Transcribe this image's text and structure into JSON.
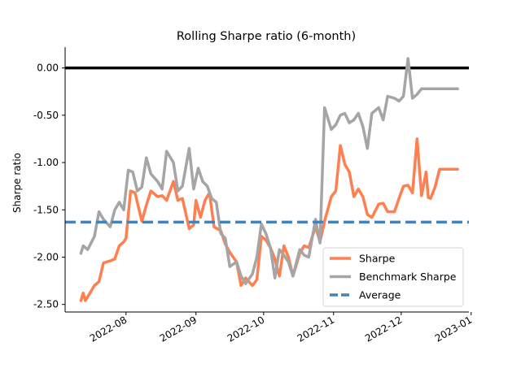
{
  "chart_data": {
    "type": "line",
    "title": "Rolling Sharpe ratio (6-month)",
    "xlabel": "",
    "ylabel": "Sharpe ratio",
    "ylim": [
      -2.58,
      0.22
    ],
    "xlim": [
      "2022-07-05",
      "2022-12-31"
    ],
    "yticks": [
      0.0,
      -0.5,
      -1.0,
      -1.5,
      -2.0,
      -2.5
    ],
    "ytick_labels": [
      "0.00",
      "-0.50",
      "-1.00",
      "-1.50",
      "-2.00",
      "-2.50"
    ],
    "xticks": [
      "2022-08-01",
      "2022-09-01",
      "2022-10-01",
      "2022-11-01",
      "2022-12-01",
      "2023-01-01"
    ],
    "xtick_labels": [
      "2022-08",
      "2022-09",
      "2022-10",
      "2022-11",
      "2022-12",
      "2023-01"
    ],
    "zero_line": 0.0,
    "legend_position": "lower-right",
    "grid": false,
    "series": [
      {
        "name": "Sharpe",
        "color": "#ff7f50",
        "x": [
          "2022-07-12",
          "2022-07-13",
          "2022-07-14",
          "2022-07-15",
          "2022-07-18",
          "2022-07-20",
          "2022-07-22",
          "2022-07-25",
          "2022-07-27",
          "2022-07-29",
          "2022-07-31",
          "2022-08-01",
          "2022-08-03",
          "2022-08-05",
          "2022-08-08",
          "2022-08-10",
          "2022-08-12",
          "2022-08-15",
          "2022-08-17",
          "2022-08-19",
          "2022-08-22",
          "2022-08-24",
          "2022-08-26",
          "2022-08-29",
          "2022-08-31",
          "2022-09-01",
          "2022-09-03",
          "2022-09-05",
          "2022-09-07",
          "2022-09-09",
          "2022-09-12",
          "2022-09-14",
          "2022-09-16",
          "2022-09-19",
          "2022-09-21",
          "2022-09-23",
          "2022-09-26",
          "2022-09-28",
          "2022-09-30",
          "2022-10-02",
          "2022-10-04",
          "2022-10-06",
          "2022-10-08",
          "2022-10-10",
          "2022-10-12",
          "2022-10-14",
          "2022-10-17",
          "2022-10-19",
          "2022-10-21",
          "2022-10-24",
          "2022-10-26",
          "2022-10-28",
          "2022-10-31",
          "2022-11-02",
          "2022-11-04",
          "2022-11-06",
          "2022-11-08",
          "2022-11-10",
          "2022-11-12",
          "2022-11-14",
          "2022-11-16",
          "2022-11-18",
          "2022-11-21",
          "2022-11-23",
          "2022-11-25",
          "2022-11-28",
          "2022-11-30",
          "2022-12-02",
          "2022-12-04",
          "2022-12-06",
          "2022-12-08",
          "2022-12-10",
          "2022-12-12",
          "2022-12-13",
          "2022-12-14",
          "2022-12-16",
          "2022-12-18",
          "2022-12-20",
          "2022-12-22",
          "2022-12-24",
          "2022-12-26"
        ],
        "y": [
          -2.46,
          -2.38,
          -2.46,
          -2.42,
          -2.3,
          -2.26,
          -2.06,
          -2.04,
          -2.02,
          -1.88,
          -1.84,
          -1.8,
          -1.3,
          -1.32,
          -1.62,
          -1.45,
          -1.3,
          -1.36,
          -1.35,
          -1.4,
          -1.2,
          -1.4,
          -1.38,
          -1.7,
          -1.66,
          -1.4,
          -1.58,
          -1.4,
          -1.32,
          -1.68,
          -1.72,
          -1.86,
          -1.95,
          -2.05,
          -2.3,
          -2.22,
          -2.3,
          -2.24,
          -1.78,
          -1.82,
          -1.9,
          -2.02,
          -2.2,
          -1.88,
          -2.0,
          -2.2,
          -1.96,
          -1.88,
          -1.9,
          -1.68,
          -1.84,
          -1.62,
          -1.36,
          -1.3,
          -0.82,
          -1.02,
          -1.1,
          -1.36,
          -1.28,
          -1.36,
          -1.55,
          -1.58,
          -1.44,
          -1.43,
          -1.52,
          -1.52,
          -1.38,
          -1.25,
          -1.24,
          -1.32,
          -0.75,
          -1.35,
          -1.1,
          -1.37,
          -1.38,
          -1.26,
          -1.07,
          -1.07,
          -1.07,
          -1.07,
          -1.07
        ]
      },
      {
        "name": "Benchmark Sharpe",
        "color": "#a5a5a5",
        "x": [
          "2022-07-12",
          "2022-07-13",
          "2022-07-15",
          "2022-07-18",
          "2022-07-20",
          "2022-07-22",
          "2022-07-25",
          "2022-07-27",
          "2022-07-29",
          "2022-07-31",
          "2022-08-02",
          "2022-08-04",
          "2022-08-06",
          "2022-08-08",
          "2022-08-10",
          "2022-08-12",
          "2022-08-15",
          "2022-08-17",
          "2022-08-19",
          "2022-08-22",
          "2022-08-24",
          "2022-08-26",
          "2022-08-29",
          "2022-08-31",
          "2022-09-02",
          "2022-09-04",
          "2022-09-06",
          "2022-09-08",
          "2022-09-10",
          "2022-09-12",
          "2022-09-14",
          "2022-09-16",
          "2022-09-19",
          "2022-09-21",
          "2022-09-23",
          "2022-09-26",
          "2022-09-28",
          "2022-09-30",
          "2022-10-02",
          "2022-10-04",
          "2022-10-06",
          "2022-10-08",
          "2022-10-10",
          "2022-10-12",
          "2022-10-14",
          "2022-10-17",
          "2022-10-19",
          "2022-10-21",
          "2022-10-24",
          "2022-10-26",
          "2022-10-28",
          "2022-10-31",
          "2022-11-02",
          "2022-11-04",
          "2022-11-06",
          "2022-11-08",
          "2022-11-10",
          "2022-11-12",
          "2022-11-14",
          "2022-11-16",
          "2022-11-18",
          "2022-11-21",
          "2022-11-23",
          "2022-11-25",
          "2022-11-28",
          "2022-11-30",
          "2022-12-02",
          "2022-12-04",
          "2022-12-06",
          "2022-12-08",
          "2022-12-10",
          "2022-12-12",
          "2022-12-13",
          "2022-12-14",
          "2022-12-16",
          "2022-12-18",
          "2022-12-20",
          "2022-12-22",
          "2022-12-24",
          "2022-12-26"
        ],
        "y": [
          -1.96,
          -1.88,
          -1.92,
          -1.78,
          -1.52,
          -1.6,
          -1.68,
          -1.5,
          -1.42,
          -1.5,
          -1.08,
          -1.1,
          -1.3,
          -1.26,
          -0.95,
          -1.12,
          -1.2,
          -1.28,
          -0.88,
          -1.0,
          -1.3,
          -1.25,
          -0.85,
          -1.28,
          -1.06,
          -1.2,
          -1.25,
          -1.38,
          -1.42,
          -1.75,
          -1.8,
          -2.1,
          -2.05,
          -2.2,
          -2.28,
          -2.18,
          -2.0,
          -1.65,
          -1.75,
          -1.9,
          -2.22,
          -1.92,
          -1.98,
          -2.05,
          -2.2,
          -1.92,
          -1.98,
          -2.0,
          -1.6,
          -1.85,
          -0.42,
          -0.65,
          -0.6,
          -0.5,
          -0.48,
          -0.58,
          -0.55,
          -0.48,
          -0.62,
          -0.85,
          -0.48,
          -0.42,
          -0.55,
          -0.3,
          -0.32,
          -0.35,
          -0.3,
          0.1,
          -0.32,
          -0.28,
          -0.22,
          -0.22,
          -0.22,
          -0.22,
          -0.22,
          -0.22,
          -0.22,
          -0.22,
          -0.22,
          -0.22
        ]
      },
      {
        "name": "Average",
        "color": "#4682b4",
        "style": "dashed",
        "value": -1.63
      }
    ]
  }
}
